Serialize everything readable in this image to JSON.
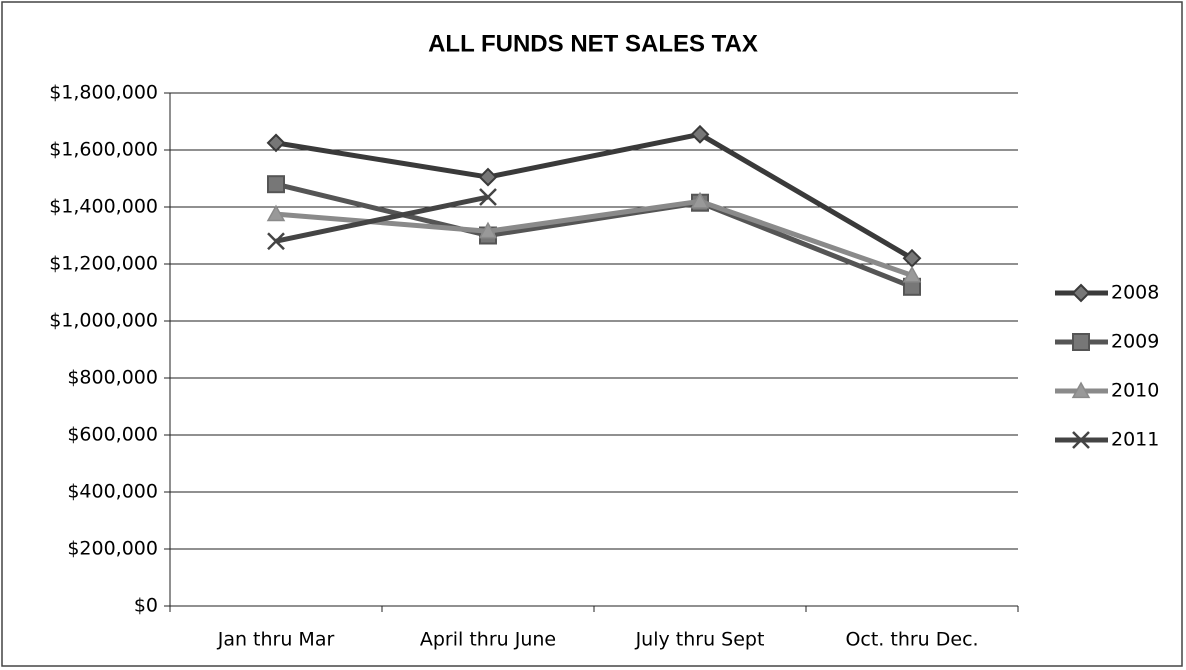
{
  "chart_data": {
    "type": "line",
    "title": "ALL FUNDS NET SALES TAX",
    "categories": [
      "Jan thru Mar",
      "April thru June",
      "July thru Sept",
      "Oct. thru Dec."
    ],
    "series": [
      {
        "name": "2008",
        "color": "#3a3a3a",
        "marker": "diamond",
        "values": [
          1625000,
          1505000,
          1655000,
          1220000
        ]
      },
      {
        "name": "2009",
        "color": "#555555",
        "marker": "square",
        "values": [
          1480000,
          1300000,
          1415000,
          1120000
        ]
      },
      {
        "name": "2010",
        "color": "#8a8a8a",
        "marker": "triangle",
        "values": [
          1375000,
          1315000,
          1420000,
          1160000
        ]
      },
      {
        "name": "2011",
        "color": "#444444",
        "marker": "x",
        "values": [
          1280000,
          1435000,
          null,
          null
        ]
      }
    ],
    "ylim": [
      0,
      1800000
    ],
    "yticks": [
      {
        "value": 0,
        "label": "$0"
      },
      {
        "value": 200000,
        "label": "$200,000"
      },
      {
        "value": 400000,
        "label": "$400,000"
      },
      {
        "value": 600000,
        "label": "$600,000"
      },
      {
        "value": 800000,
        "label": "$800,000"
      },
      {
        "value": 1000000,
        "label": "$1,000,000"
      },
      {
        "value": 1200000,
        "label": "$1,200,000"
      },
      {
        "value": 1400000,
        "label": "$1,400,000"
      },
      {
        "value": 1600000,
        "label": "$1,600,000"
      },
      {
        "value": 1800000,
        "label": "$1,800,000"
      }
    ],
    "grid": true,
    "legend": "right"
  }
}
